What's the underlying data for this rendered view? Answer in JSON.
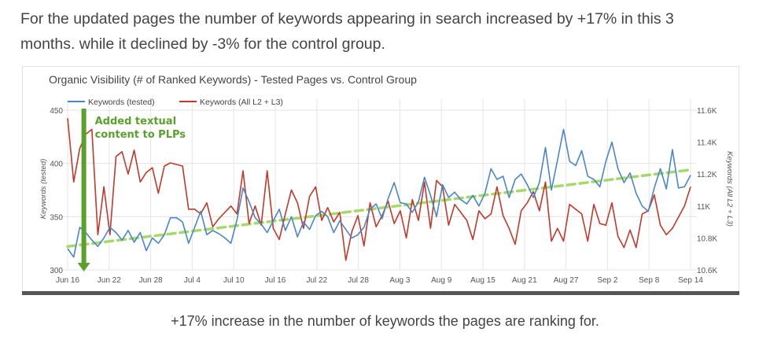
{
  "intro": {
    "line1": "For the updated pages the number of keywords appearing in search increased by +17% in this 3",
    "line2": "months. while it declined by -3% for the control group."
  },
  "caption": "+17% increase in the number of keywords the pages are ranking for.",
  "chart_data": {
    "type": "line",
    "title": "Organic Visibility (# of Ranked Keywords) - Tested Pages vs. Control Group",
    "ylabel_left": "Keywords (tested)",
    "ylabel_right": "Keywords (All L2 + L3)",
    "ylim_left": [
      300,
      450
    ],
    "ylim_right": [
      10600,
      11600
    ],
    "y_ticks_left": [
      "300",
      "350",
      "400",
      "450"
    ],
    "y_ticks_right": [
      "10.6K",
      "10.8K",
      "11K",
      "11.2K",
      "11.4K",
      "11.6K"
    ],
    "x_ticks": [
      "Jun 16",
      "Jun 22",
      "Jun 28",
      "Jul 4",
      "Jul 10",
      "Jul 16",
      "Jul 22",
      "Jul 28",
      "Aug 3",
      "Aug 9",
      "Aug 15",
      "Aug 21",
      "Aug 27",
      "Sep 2",
      "Sep 8",
      "Sep 14"
    ],
    "x_start": "Jun 16",
    "grid": true,
    "legend_position": "top-left",
    "annotation": {
      "line1": "Added textual",
      "line2": "content to PLPs",
      "at": "Jun 18",
      "color": "#5aa02c"
    },
    "trendline": {
      "axis": "left",
      "start": {
        "x": "Jun 16",
        "y": 322
      },
      "end": {
        "x": "Sep 14",
        "y": 394
      },
      "color": "#a6d96a"
    },
    "series": [
      {
        "name": "Keywords (tested)",
        "color": "#4a86c8",
        "axis": "left",
        "values": [
          320,
          312,
          340,
          335,
          328,
          322,
          330,
          340,
          335,
          328,
          337,
          326,
          335,
          318,
          330,
          325,
          333,
          349,
          349,
          345,
          325,
          340,
          355,
          333,
          337,
          334,
          330,
          325,
          347,
          377,
          364,
          349,
          343,
          335,
          346,
          357,
          337,
          350,
          331,
          345,
          338,
          351,
          355,
          350,
          335,
          346,
          338,
          330,
          333,
          340,
          357,
          362,
          348,
          367,
          382,
          363,
          362,
          354,
          364,
          387,
          370,
          350,
          380,
          368,
          373,
          366,
          362,
          370,
          360,
          372,
          395,
          385,
          388,
          368,
          385,
          390,
          380,
          368,
          382,
          415,
          375,
          403,
          432,
          402,
          398,
          412,
          388,
          385,
          378,
          402,
          420,
          395,
          382,
          391,
          372,
          360,
          355,
          377,
          395,
          376,
          413,
          377,
          378,
          389
        ]
      },
      {
        "name": "Keywords (All L2 + L3)",
        "color": "#c0392b",
        "axis": "right",
        "values": [
          11550,
          11150,
          11360,
          11450,
          11480,
          10820,
          11120,
          10820,
          11310,
          11340,
          11200,
          11350,
          11150,
          11210,
          11240,
          11080,
          11250,
          11270,
          11260,
          11250,
          10980,
          10980,
          10950,
          11020,
          10870,
          10920,
          10960,
          11000,
          10950,
          11220,
          10890,
          11000,
          10880,
          11220,
          10860,
          10790,
          10950,
          11100,
          11020,
          10860,
          11060,
          11120,
          10910,
          10990,
          10900,
          10960,
          10660,
          10840,
          10940,
          10750,
          11020,
          10870,
          10940,
          11030,
          10890,
          10970,
          10800,
          11040,
          10910,
          11150,
          10860,
          11160,
          11120,
          10880,
          11010,
          10960,
          10910,
          10790,
          10970,
          10920,
          10950,
          11120,
          10940,
          10860,
          10760,
          10970,
          11020,
          11090,
          10970,
          11150,
          10780,
          10860,
          10780,
          11010,
          10980,
          10950,
          10780,
          11010,
          10890,
          10880,
          11020,
          10810,
          10740,
          10850,
          10740,
          10950,
          10970,
          11070,
          10880,
          10820,
          10860,
          10930,
          11000,
          11120
        ]
      }
    ]
  },
  "colors": {
    "text": "#444444",
    "tick": "#555555",
    "grid": "#e5e5e5",
    "tested_line": "#4a86c8",
    "control_line": "#c0392b",
    "annotation": "#5aa02c",
    "trend": "#a6d96a"
  }
}
